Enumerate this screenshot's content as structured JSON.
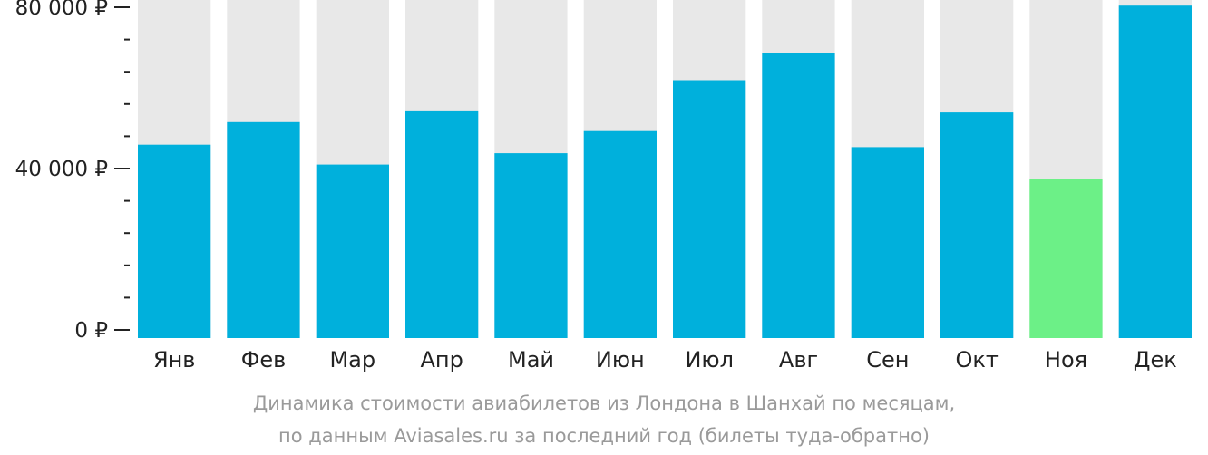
{
  "colors": {
    "bar": "#00b0dc",
    "bar_min": "#6cf087",
    "bar_bg": "#e8e8e8",
    "axis_text": "#222222",
    "caption_text": "#9a9a9a"
  },
  "caption": {
    "line1": "Динамика стоимости авиабилетов из Лондона в Шанхай по месяцам,",
    "line2": "по данным Aviasales.ru за последний год (билеты туда-обратно)"
  },
  "chart_data": {
    "type": "bar",
    "categories": [
      "Янв",
      "Фев",
      "Мар",
      "Апр",
      "Май",
      "Июн",
      "Июл",
      "Авг",
      "Сен",
      "Окт",
      "Ноя",
      "Дек"
    ],
    "values": [
      45900,
      51500,
      41000,
      54400,
      43800,
      49500,
      61900,
      68700,
      45300,
      53900,
      37300,
      80400
    ],
    "highlight_index": 10,
    "ylim": [
      0,
      83000
    ],
    "yticks": [
      {
        "value": 0,
        "label": "0 ₽"
      },
      {
        "value": 40000,
        "label": "40 000 ₽"
      },
      {
        "value": 80000,
        "label": "80 000 ₽"
      }
    ],
    "minor_tick_step": 8000,
    "grid": false,
    "legend": "none"
  }
}
